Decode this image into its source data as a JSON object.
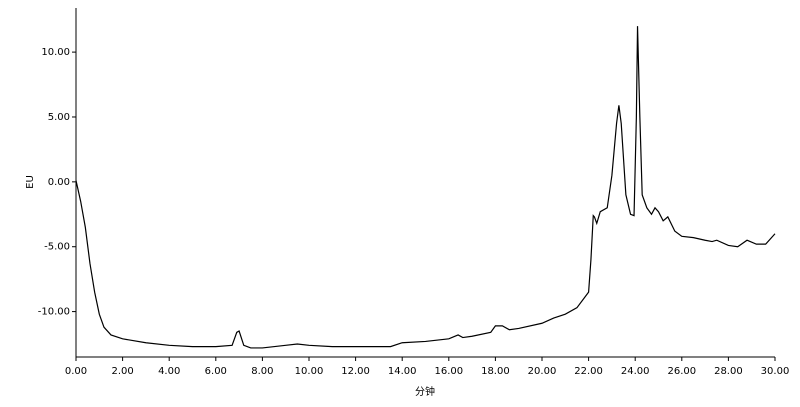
{
  "chart_data": {
    "type": "line",
    "x_label": "分钟",
    "y_label": "EU",
    "xlim": [
      0,
      30
    ],
    "ylim": [
      -13.5,
      13.4
    ],
    "xticks": [
      {
        "value": 0,
        "label": "0.00"
      },
      {
        "value": 2,
        "label": "2.00"
      },
      {
        "value": 4,
        "label": "4.00"
      },
      {
        "value": 6,
        "label": "6.00"
      },
      {
        "value": 8,
        "label": "8.00"
      },
      {
        "value": 10,
        "label": "10.00"
      },
      {
        "value": 12,
        "label": "12.00"
      },
      {
        "value": 14,
        "label": "14.00"
      },
      {
        "value": 16,
        "label": "16.00"
      },
      {
        "value": 18,
        "label": "18.00"
      },
      {
        "value": 20,
        "label": "20.00"
      },
      {
        "value": 22,
        "label": "22.00"
      },
      {
        "value": 24,
        "label": "24.00"
      },
      {
        "value": 26,
        "label": "26.00"
      },
      {
        "value": 28,
        "label": "28.00"
      },
      {
        "value": 30,
        "label": "30.00"
      }
    ],
    "yticks": [
      {
        "value": -10,
        "label": "-10.00"
      },
      {
        "value": -5,
        "label": "-5.00"
      },
      {
        "value": 0,
        "label": "0.00"
      },
      {
        "value": 5,
        "label": "5.00"
      },
      {
        "value": 10,
        "label": "10.00"
      }
    ],
    "x": [
      0,
      0.2,
      0.4,
      0.6,
      0.8,
      1.0,
      1.2,
      1.5,
      2.0,
      3.0,
      4.0,
      5.0,
      6.0,
      6.7,
      6.9,
      7.0,
      7.2,
      7.5,
      8.0,
      9.0,
      9.5,
      10.0,
      11.0,
      12.0,
      13.5,
      14.0,
      15.0,
      16.0,
      16.4,
      16.6,
      17.0,
      17.8,
      18.0,
      18.3,
      18.6,
      19.0,
      20.0,
      20.5,
      21.0,
      21.5,
      22.0,
      22.1,
      22.2,
      22.25,
      22.35,
      22.5,
      22.8,
      23.0,
      23.2,
      23.3,
      23.4,
      23.6,
      23.8,
      23.95,
      24.05,
      24.1,
      24.2,
      24.3,
      24.5,
      24.7,
      24.85,
      25.0,
      25.2,
      25.4,
      25.7,
      26.0,
      26.5,
      27.0,
      27.3,
      27.5,
      28.0,
      28.4,
      28.8,
      29.2,
      29.6,
      30.0
    ],
    "series": [
      {
        "color": "#000000",
        "values": [
          0.1,
          -1.5,
          -3.5,
          -6.3,
          -8.5,
          -10.2,
          -11.2,
          -11.8,
          -12.1,
          -12.4,
          -12.6,
          -12.7,
          -12.7,
          -12.6,
          -11.6,
          -11.5,
          -12.6,
          -12.8,
          -12.8,
          -12.6,
          -12.5,
          -12.6,
          -12.7,
          -12.7,
          -12.7,
          -12.4,
          -12.3,
          -12.1,
          -11.8,
          -12.0,
          -11.9,
          -11.6,
          -11.1,
          -11.1,
          -11.4,
          -11.3,
          -10.9,
          -10.5,
          -10.2,
          -9.7,
          -8.5,
          -6.0,
          -2.6,
          -2.7,
          -3.2,
          -2.3,
          -2.0,
          0.5,
          4.5,
          5.9,
          4.5,
          -1.0,
          -2.5,
          -2.6,
          5.0,
          12.0,
          5.0,
          -1.0,
          -2.0,
          -2.5,
          -2.0,
          -2.3,
          -3.0,
          -2.7,
          -3.8,
          -4.2,
          -4.3,
          -4.5,
          -4.6,
          -4.5,
          -4.9,
          -5.0,
          -4.5,
          -4.8,
          -4.8,
          -4.0
        ]
      }
    ]
  }
}
